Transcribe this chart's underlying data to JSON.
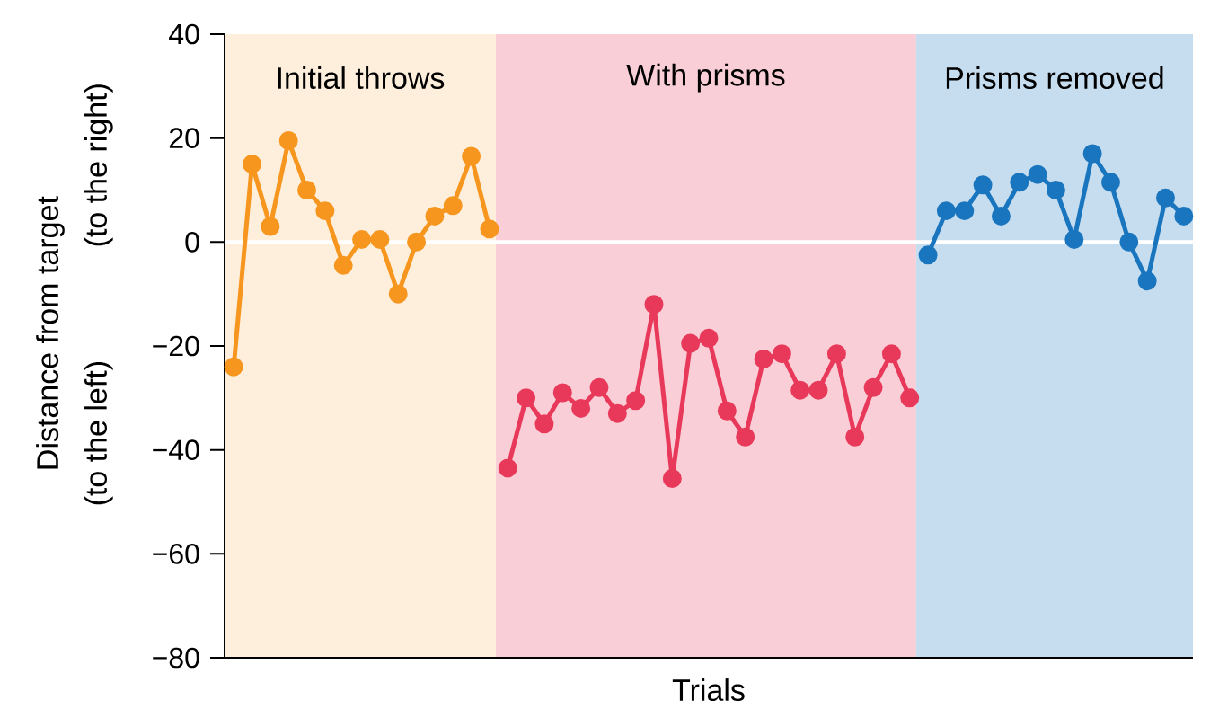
{
  "chart_data": {
    "type": "line",
    "xlabel": "Trials",
    "ylabel": "Distance from target",
    "annotations": [
      "(to the right)",
      "(to the left)",
      "Initial throws",
      "With prisms",
      "Prisms removed"
    ],
    "categories": [
      null,
      null,
      null,
      null,
      null,
      null,
      null,
      null,
      null,
      null,
      null,
      null,
      null,
      null,
      null,
      null,
      null,
      null,
      null,
      null,
      null,
      null,
      null,
      null,
      null,
      null,
      null,
      null,
      null,
      null,
      null,
      null,
      null,
      null,
      null,
      null,
      null,
      null,
      null,
      null,
      null,
      null,
      null,
      null,
      null,
      null,
      null,
      null,
      null,
      null,
      null,
      null,
      null
    ],
    "series": [
      {
        "color": "#f7961e",
        "values": [
          -24,
          15,
          3,
          19.5,
          10,
          6,
          -4.5,
          0.5,
          0.5,
          -10,
          0,
          5,
          7,
          16.5,
          2.5,
          null,
          null,
          null,
          null,
          null,
          null,
          null,
          null,
          null,
          null,
          null,
          null,
          null,
          null,
          null,
          null,
          null,
          null,
          null,
          null,
          null,
          null,
          null,
          null,
          null,
          null,
          null,
          null,
          null,
          null,
          null,
          null,
          null,
          null,
          null,
          null,
          null,
          null
        ]
      },
      {
        "color": "#e8395a",
        "values": [
          null,
          null,
          null,
          null,
          null,
          null,
          null,
          null,
          null,
          null,
          null,
          null,
          null,
          null,
          null,
          -43.5,
          -30,
          -35,
          -29,
          -32,
          -28,
          -33,
          -30.5,
          -12,
          -45.5,
          -19.5,
          -18.5,
          -32.5,
          -37.5,
          -22.5,
          -21.5,
          -28.5,
          -28.5,
          -21.5,
          -37.5,
          -28,
          -21.5,
          -30,
          null,
          null,
          null,
          null,
          null,
          null,
          null,
          null,
          null,
          null,
          null,
          null,
          null,
          null,
          null
        ]
      },
      {
        "color": "#1a75bf",
        "values": [
          null,
          null,
          null,
          null,
          null,
          null,
          null,
          null,
          null,
          null,
          null,
          null,
          null,
          null,
          null,
          null,
          null,
          null,
          null,
          null,
          null,
          null,
          null,
          null,
          null,
          null,
          null,
          null,
          null,
          null,
          null,
          null,
          null,
          null,
          null,
          null,
          null,
          null,
          -2.5,
          6,
          6,
          11,
          5,
          11.5,
          13,
          10,
          0.5,
          17,
          11.5,
          0,
          -7.5,
          8.5,
          5
        ]
      }
    ],
    "ylim": [
      -80,
      40
    ],
    "yticks": [
      {
        "value": -80,
        "label": "−80"
      },
      {
        "value": -60,
        "label": "−60"
      },
      {
        "value": -40,
        "label": "−40"
      },
      {
        "value": -20,
        "label": "−20"
      },
      0,
      20,
      40
    ],
    "tick_labels": "y",
    "marker": "circle",
    "line_style": "solid",
    "ref_lines": [
      {
        "axis": "y",
        "value": 0,
        "color": "#ffffff"
      }
    ]
  }
}
